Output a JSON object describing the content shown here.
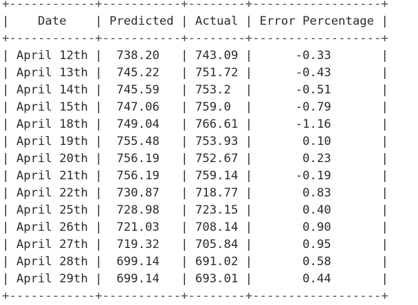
{
  "table": {
    "headers": [
      "Date",
      "Predicted",
      "Actual",
      "Error Percentage"
    ],
    "rows": [
      {
        "date": "April 12th",
        "predicted": "738.20",
        "actual": "743.09",
        "error": "-0.33"
      },
      {
        "date": "April 13th",
        "predicted": "745.22",
        "actual": "751.72",
        "error": "-0.43"
      },
      {
        "date": "April 14th",
        "predicted": "745.59",
        "actual": "753.2",
        "error": "-0.51"
      },
      {
        "date": "April 15th",
        "predicted": "747.06",
        "actual": "759.0",
        "error": "-0.79"
      },
      {
        "date": "April 18th",
        "predicted": "749.04",
        "actual": "766.61",
        "error": "-1.16"
      },
      {
        "date": "April 19th",
        "predicted": "755.48",
        "actual": "753.93",
        "error": "0.10"
      },
      {
        "date": "April 20th",
        "predicted": "756.19",
        "actual": "752.67",
        "error": "0.23"
      },
      {
        "date": "April 21th",
        "predicted": "756.19",
        "actual": "759.14",
        "error": "-0.19"
      },
      {
        "date": "April 22th",
        "predicted": "730.87",
        "actual": "718.77",
        "error": "0.83"
      },
      {
        "date": "April 25th",
        "predicted": "728.98",
        "actual": "723.15",
        "error": "0.40"
      },
      {
        "date": "April 26th",
        "predicted": "721.03",
        "actual": "708.14",
        "error": "0.90"
      },
      {
        "date": "April 27th",
        "predicted": "719.32",
        "actual": "705.84",
        "error": "0.95"
      },
      {
        "date": "April 28th",
        "predicted": "699.14",
        "actual": "691.02",
        "error": "0.58"
      },
      {
        "date": "April 29th",
        "predicted": "699.14",
        "actual": "693.01",
        "error": "0.44"
      }
    ]
  }
}
